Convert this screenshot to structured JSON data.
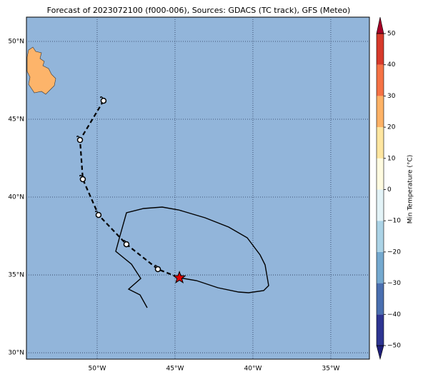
{
  "map": {
    "title": "Forecast of 2023072100 (f000-006), Sources: GDACS (TC track), GFS (Meteo)",
    "lon_range": [
      -54.54,
      -32.52
    ],
    "lat_range": [
      29.59,
      51.56
    ],
    "lon_ticks": [
      {
        "value": -50,
        "label": "50°W"
      },
      {
        "value": -45,
        "label": "45°W"
      },
      {
        "value": -40,
        "label": "40°W"
      },
      {
        "value": -35,
        "label": "35°W"
      }
    ],
    "lat_ticks": [
      {
        "value": 50,
        "label": "50°N"
      },
      {
        "value": 45,
        "label": "45°N"
      },
      {
        "value": 40,
        "label": "40°N"
      },
      {
        "value": 35,
        "label": "35°N"
      },
      {
        "value": 30,
        "label": "30°N"
      }
    ],
    "track": {
      "points": [
        {
          "lon": -49.59,
          "lat": 46.19
        },
        {
          "lon": -51.1,
          "lat": 43.67
        },
        {
          "lon": -50.92,
          "lat": 41.15
        },
        {
          "lon": -49.91,
          "lat": 38.85
        },
        {
          "lon": -48.12,
          "lat": 36.97
        },
        {
          "lon": -46.1,
          "lat": 35.37
        },
        {
          "lon": -44.72,
          "lat": 34.82
        }
      ]
    },
    "colorbar": {
      "label": "Min Temperature (°C)",
      "ticks": [
        {
          "value": 50,
          "label": "50"
        },
        {
          "value": 40,
          "label": "40"
        },
        {
          "value": 30,
          "label": "30"
        },
        {
          "value": 20,
          "label": "20"
        },
        {
          "value": 10,
          "label": "10"
        },
        {
          "value": 0,
          "label": "0"
        },
        {
          "value": -10,
          "label": "−10"
        },
        {
          "value": -20,
          "label": "−20"
        },
        {
          "value": -30,
          "label": "−30"
        },
        {
          "value": -40,
          "label": "−40"
        },
        {
          "value": -50,
          "label": "−50"
        }
      ],
      "bin_colors": [
        "#2e3592",
        "#4a6fb0",
        "#74a9cf",
        "#abd3e6",
        "#e3f3f7",
        "#fffbe0",
        "#fee6a0",
        "#fdb266",
        "#f57245",
        "#d73a2b"
      ],
      "under_color": "#1f1f7a",
      "over_color": "#a50026"
    }
  }
}
